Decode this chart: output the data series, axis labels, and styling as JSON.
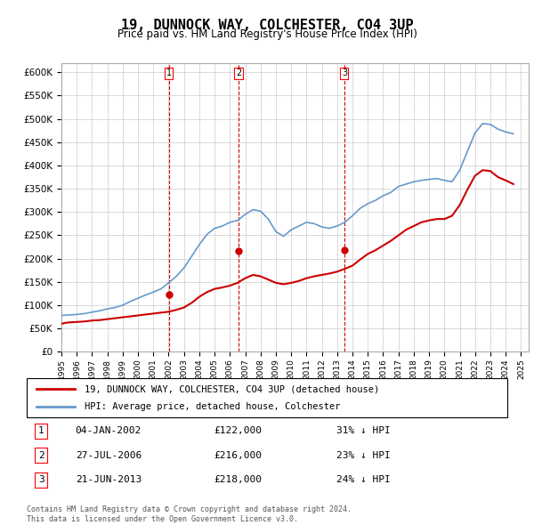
{
  "title": "19, DUNNOCK WAY, COLCHESTER, CO4 3UP",
  "subtitle": "Price paid vs. HM Land Registry's House Price Index (HPI)",
  "legend_line1": "19, DUNNOCK WAY, COLCHESTER, CO4 3UP (detached house)",
  "legend_line2": "HPI: Average price, detached house, Colchester",
  "footer1": "Contains HM Land Registry data © Crown copyright and database right 2024.",
  "footer2": "This data is licensed under the Open Government Licence v3.0.",
  "transactions": [
    {
      "num": 1,
      "date": "04-JAN-2002",
      "price": "£122,000",
      "pct": "31% ↓ HPI",
      "year": 2002.01
    },
    {
      "num": 2,
      "date": "27-JUL-2006",
      "price": "£216,000",
      "pct": "23% ↓ HPI",
      "year": 2006.56
    },
    {
      "num": 3,
      "date": "21-JUN-2013",
      "price": "£218,000",
      "pct": "24% ↓ HPI",
      "year": 2013.47
    }
  ],
  "hpi_color": "#6699cc",
  "price_color": "#cc0000",
  "ylim": [
    0,
    620000
  ],
  "xlim_start": 1995.0,
  "xlim_end": 2025.5,
  "hpi_data": {
    "years": [
      1995.0,
      1995.5,
      1996.0,
      1996.5,
      1997.0,
      1997.5,
      1998.0,
      1998.5,
      1999.0,
      1999.5,
      2000.0,
      2000.5,
      2001.0,
      2001.5,
      2002.0,
      2002.5,
      2003.0,
      2003.5,
      2004.0,
      2004.5,
      2005.0,
      2005.5,
      2006.0,
      2006.5,
      2007.0,
      2007.5,
      2008.0,
      2008.5,
      2009.0,
      2009.5,
      2010.0,
      2010.5,
      2011.0,
      2011.5,
      2012.0,
      2012.5,
      2013.0,
      2013.5,
      2014.0,
      2014.5,
      2015.0,
      2015.5,
      2016.0,
      2016.5,
      2017.0,
      2017.5,
      2018.0,
      2018.5,
      2019.0,
      2019.5,
      2020.0,
      2020.5,
      2021.0,
      2021.5,
      2022.0,
      2022.5,
      2023.0,
      2023.5,
      2024.0,
      2024.5
    ],
    "values": [
      78000,
      79000,
      80000,
      82000,
      85000,
      88000,
      92000,
      95000,
      100000,
      108000,
      115000,
      122000,
      128000,
      135000,
      148000,
      162000,
      180000,
      205000,
      230000,
      252000,
      265000,
      270000,
      278000,
      282000,
      295000,
      305000,
      302000,
      285000,
      258000,
      248000,
      262000,
      270000,
      278000,
      275000,
      268000,
      265000,
      270000,
      278000,
      292000,
      308000,
      318000,
      325000,
      335000,
      342000,
      355000,
      360000,
      365000,
      368000,
      370000,
      372000,
      368000,
      365000,
      390000,
      430000,
      470000,
      490000,
      488000,
      478000,
      472000,
      468000
    ]
  },
  "price_data": {
    "years": [
      1995.0,
      1995.25,
      1995.5,
      1995.75,
      1996.0,
      1996.5,
      1997.0,
      1997.5,
      1998.0,
      1998.5,
      1999.0,
      1999.5,
      2000.0,
      2000.5,
      2001.0,
      2001.5,
      2002.0,
      2002.5,
      2003.0,
      2003.5,
      2004.0,
      2004.5,
      2005.0,
      2005.5,
      2006.0,
      2006.5,
      2007.0,
      2007.5,
      2008.0,
      2008.5,
      2009.0,
      2009.5,
      2010.0,
      2010.5,
      2011.0,
      2011.5,
      2012.0,
      2012.5,
      2013.0,
      2013.5,
      2014.0,
      2014.5,
      2015.0,
      2015.5,
      2016.0,
      2016.5,
      2017.0,
      2017.5,
      2018.0,
      2018.5,
      2019.0,
      2019.5,
      2020.0,
      2020.5,
      2021.0,
      2021.5,
      2022.0,
      2022.5,
      2023.0,
      2023.5,
      2024.0,
      2024.5
    ],
    "values": [
      60000,
      62000,
      63000,
      63500,
      64000,
      65000,
      67000,
      68000,
      70000,
      72000,
      74000,
      76000,
      78000,
      80000,
      82000,
      84000,
      86000,
      90000,
      95000,
      105000,
      118000,
      128000,
      135000,
      138000,
      142000,
      148000,
      158000,
      165000,
      162000,
      155000,
      148000,
      145000,
      148000,
      152000,
      158000,
      162000,
      165000,
      168000,
      172000,
      178000,
      185000,
      198000,
      210000,
      218000,
      228000,
      238000,
      250000,
      262000,
      270000,
      278000,
      282000,
      285000,
      285000,
      292000,
      315000,
      348000,
      378000,
      390000,
      388000,
      375000,
      368000,
      360000
    ]
  }
}
